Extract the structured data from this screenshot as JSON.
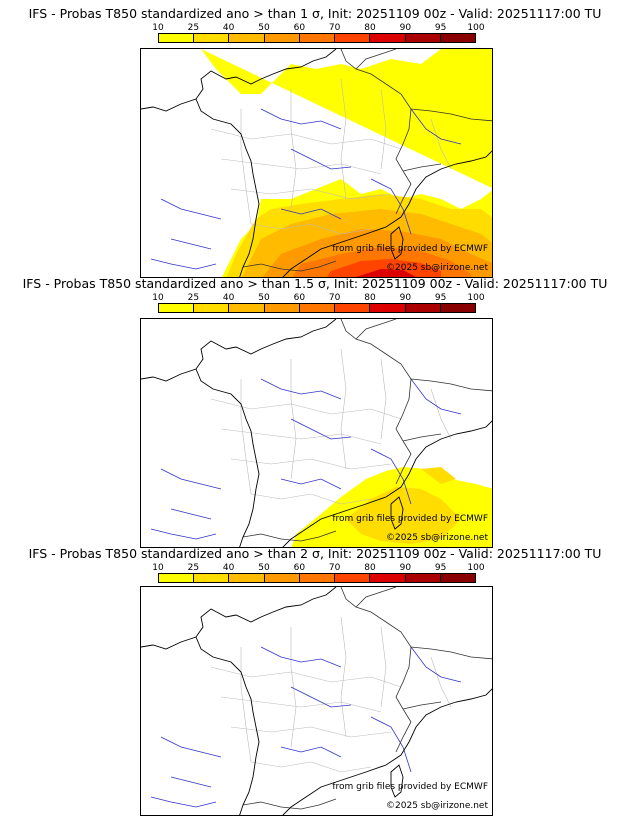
{
  "colorbar": {
    "ticks": [
      "10",
      "25",
      "40",
      "50",
      "60",
      "70",
      "80",
      "90",
      "95",
      "100"
    ],
    "colors": [
      "#ffff00",
      "#ffdd00",
      "#ffbb00",
      "#ff9900",
      "#ff7700",
      "#ff4400",
      "#dd0000",
      "#aa0000",
      "#880000"
    ]
  },
  "panels": [
    {
      "title": "IFS - Probas T850  standardized ano > than 1 σ, Init: 20251109 00z - Valid: 20251117:00 TU",
      "credit_source": "from grib files provided by ECMWF",
      "credit_copy": "©2025 sb@irizone.net",
      "probability_level": "high"
    },
    {
      "title": "IFS - Probas T850  standardized ano > than 1.5 σ, Init: 20251109 00z - Valid: 20251117:00 TU",
      "credit_source": "from grib files provided by ECMWF",
      "credit_copy": "©2025 sb@irizone.net",
      "probability_level": "medium"
    },
    {
      "title": "IFS - Probas T850  standardized ano > than 2 σ, Init: 20251109 00z - Valid: 20251117:00 TU",
      "credit_source": "from grib files provided by ECMWF",
      "credit_copy": "©2025 sb@irizone.net",
      "probability_level": "none"
    }
  ]
}
